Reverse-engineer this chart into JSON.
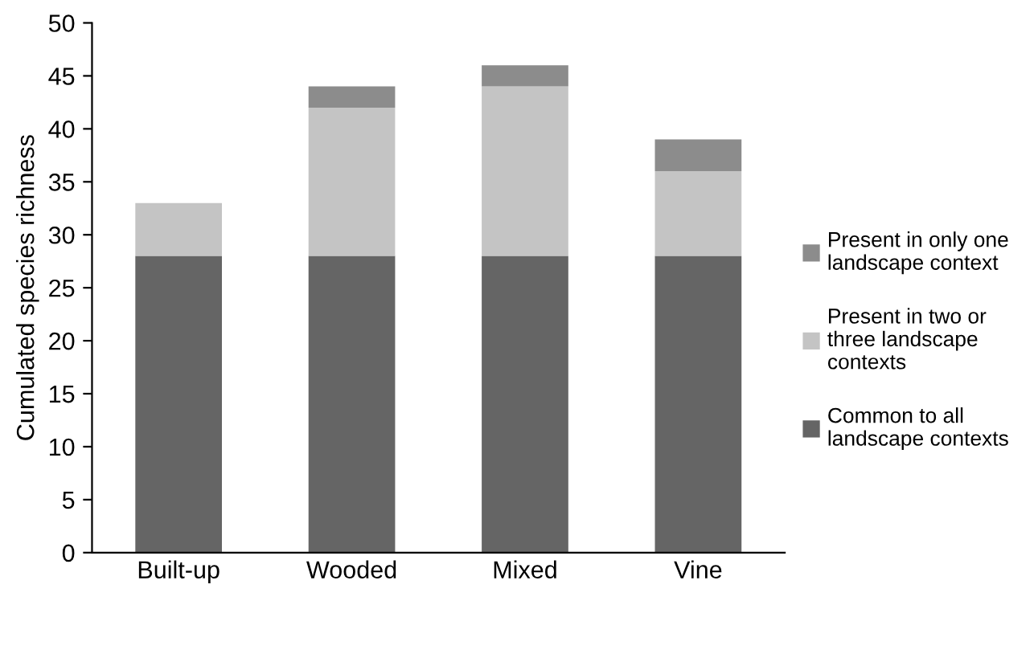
{
  "chart_data": {
    "type": "bar",
    "stacked": true,
    "ylabel": "Cumulated species richness",
    "categories": [
      "Built-up",
      "Wooded",
      "Mixed",
      "Vine"
    ],
    "series": [
      {
        "name": "Common to all\nlandscape contexts",
        "color": "#656565",
        "values": [
          28,
          28,
          28,
          28
        ]
      },
      {
        "name": "Present in two or\nthree landscape\ncontexts",
        "color": "#c4c4c4",
        "values": [
          5,
          14,
          16,
          8
        ]
      },
      {
        "name": "Present in only one\nlandscape context",
        "color": "#8c8c8c",
        "values": [
          0,
          2,
          2,
          3
        ]
      }
    ],
    "ylim": [
      0,
      50
    ],
    "yticks": [
      0,
      5,
      10,
      15,
      20,
      25,
      30,
      35,
      40,
      45,
      50
    ],
    "grid": false,
    "legend": "right"
  }
}
